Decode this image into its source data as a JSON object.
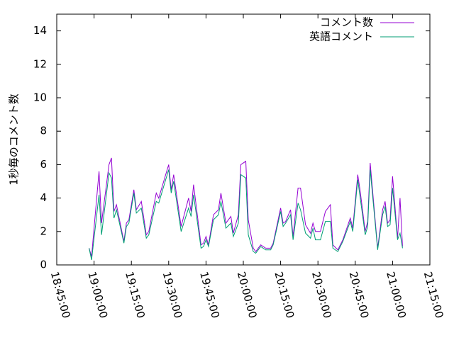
{
  "chart_data": {
    "type": "line",
    "ylabel": "1秒毎のコメント数",
    "x": [
      "18:58:00",
      "18:59:00",
      "19:02:00",
      "19:03:00",
      "19:06:00",
      "19:07:00",
      "19:08:00",
      "19:09:00",
      "19:12:00",
      "19:13:00",
      "19:14:00",
      "19:16:00",
      "19:17:00",
      "19:19:00",
      "19:21:00",
      "19:22:00",
      "19:25:00",
      "19:26:00",
      "19:30:00",
      "19:31:00",
      "19:32:00",
      "19:35:00",
      "19:38:00",
      "19:39:00",
      "19:40:00",
      "19:43:00",
      "19:44:00",
      "19:45:00",
      "19:46:00",
      "19:48:00",
      "19:50:00",
      "19:51:00",
      "19:53:00",
      "19:55:00",
      "19:56:00",
      "19:58:00",
      "19:59:00",
      "20:01:00",
      "20:02:00",
      "20:04:00",
      "20:05:00",
      "20:07:00",
      "20:09:00",
      "20:11:00",
      "20:12:00",
      "20:15:00",
      "20:16:00",
      "20:17:00",
      "20:19:00",
      "20:20:00",
      "20:22:00",
      "20:23:00",
      "20:25:00",
      "20:27:00",
      "20:28:00",
      "20:29:00",
      "20:31:00",
      "20:33:00",
      "20:35:00",
      "20:36:00",
      "20:38:00",
      "20:40:00",
      "20:43:00",
      "20:44:00",
      "20:46:00",
      "20:47:00",
      "20:49:00",
      "20:50:00",
      "20:51:00",
      "20:54:00",
      "20:56:00",
      "20:57:00",
      "20:58:00",
      "20:59:00",
      "21:00:00",
      "21:02:00",
      "21:03:00",
      "21:04:00"
    ],
    "series": [
      {
        "name": "コメント数",
        "color": "#9400d3",
        "values": [
          1.0,
          0.5,
          5.6,
          2.5,
          6.0,
          6.4,
          3.2,
          3.6,
          1.4,
          2.5,
          2.7,
          4.5,
          3.3,
          3.8,
          1.8,
          2.0,
          4.3,
          4.0,
          6.0,
          4.5,
          5.4,
          2.3,
          4.0,
          3.2,
          4.8,
          1.2,
          1.3,
          1.7,
          1.2,
          3.0,
          3.3,
          4.3,
          2.5,
          2.9,
          1.9,
          3.0,
          6.0,
          6.2,
          2.7,
          1.0,
          0.8,
          1.2,
          1.0,
          1.0,
          1.3,
          3.4,
          2.5,
          2.6,
          3.3,
          1.7,
          4.6,
          4.6,
          2.4,
          1.9,
          2.5,
          2.0,
          2.0,
          3.2,
          3.6,
          1.2,
          0.9,
          1.5,
          2.8,
          2.2,
          5.4,
          4.4,
          2.0,
          2.6,
          6.1,
          1.0,
          3.3,
          3.8,
          2.5,
          2.7,
          5.3,
          1.6,
          4.0,
          1.1
        ]
      },
      {
        "name": "英語コメント",
        "color": "#009e73",
        "values": [
          1.0,
          0.3,
          4.2,
          1.8,
          5.5,
          5.2,
          2.8,
          3.3,
          1.3,
          2.3,
          2.5,
          4.3,
          3.1,
          3.4,
          1.6,
          1.8,
          3.8,
          3.7,
          5.7,
          4.3,
          5.0,
          2.0,
          3.4,
          2.9,
          4.2,
          1.0,
          1.1,
          1.5,
          1.1,
          2.7,
          3.0,
          3.8,
          2.2,
          2.5,
          1.7,
          2.5,
          5.4,
          5.2,
          1.8,
          0.8,
          0.7,
          1.1,
          0.9,
          0.9,
          1.2,
          3.2,
          2.3,
          2.5,
          3.0,
          1.5,
          3.7,
          3.3,
          1.9,
          1.6,
          2.2,
          1.5,
          1.5,
          2.6,
          2.6,
          1.0,
          0.8,
          1.4,
          2.6,
          2.0,
          5.1,
          4.0,
          1.8,
          2.3,
          5.7,
          0.9,
          3.0,
          3.5,
          2.3,
          2.4,
          4.6,
          1.5,
          1.9,
          1.0
        ]
      }
    ],
    "xlim": [
      "18:45:00",
      "21:15:00"
    ],
    "xticks": [
      "18:45:00",
      "19:00:00",
      "19:15:00",
      "19:30:00",
      "19:45:00",
      "20:00:00",
      "20:15:00",
      "20:30:00",
      "20:45:00",
      "21:00:00",
      "21:15:00"
    ],
    "ylim": [
      0,
      15
    ],
    "yticks": [
      0,
      2,
      4,
      6,
      8,
      10,
      12,
      14
    ],
    "legend": "top-right"
  }
}
